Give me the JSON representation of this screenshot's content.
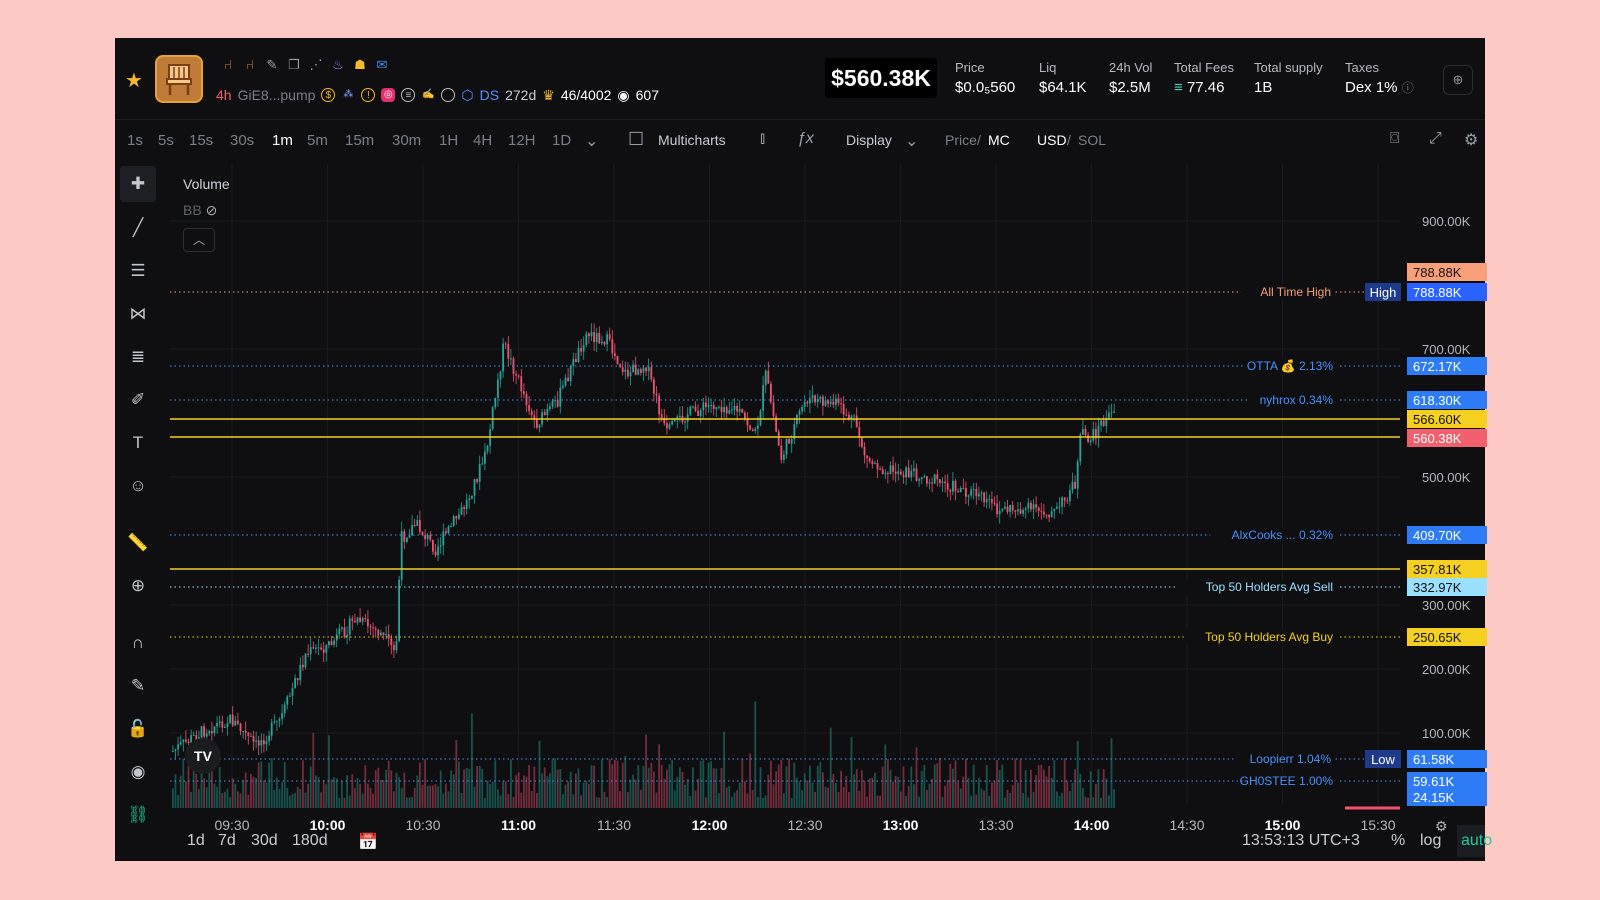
{
  "header": {
    "age": "4h",
    "ticker": "GiE8...pump",
    "ds_label": "DS",
    "ds_age": "272d",
    "holders": "46/4002",
    "watchers": "607",
    "market_cap": "$560.38K",
    "stats": [
      {
        "label": "Price",
        "value": "$0.0₅560"
      },
      {
        "label": "Liq",
        "value": "$64.1K"
      },
      {
        "label": "24h Vol",
        "value": "$2.5M"
      },
      {
        "label": "Total Fees",
        "value": "77.46"
      },
      {
        "label": "Total supply",
        "value": "1B"
      },
      {
        "label": "Taxes",
        "value": "Dex 1%"
      }
    ]
  },
  "toolbar": {
    "timeframes": [
      "1s",
      "5s",
      "15s",
      "30s",
      "1m",
      "5m",
      "15m",
      "30m",
      "1H",
      "4H",
      "12H",
      "1D"
    ],
    "active_timeframe": "1m",
    "multicharts": "Multicharts",
    "display": "Display",
    "price_label": "Price",
    "mc_label": "MC",
    "usd_label": "USD",
    "sol_label": "SOL"
  },
  "legend": {
    "volume": "Volume",
    "bb": "BB"
  },
  "chart_data": {
    "type": "candlestick",
    "y_unit": "market cap (USD)",
    "y_ticks": [
      "900.00K",
      "700.00K",
      "500.00K",
      "300.00K",
      "200.00K",
      "100.00K"
    ],
    "x_ticks": [
      {
        "label": "09:30",
        "bold": false
      },
      {
        "label": "10:00",
        "bold": true
      },
      {
        "label": "10:30",
        "bold": false
      },
      {
        "label": "11:00",
        "bold": true
      },
      {
        "label": "11:30",
        "bold": false
      },
      {
        "label": "12:00",
        "bold": true
      },
      {
        "label": "12:30",
        "bold": false
      },
      {
        "label": "13:00",
        "bold": true
      },
      {
        "label": "13:30",
        "bold": false
      },
      {
        "label": "14:00",
        "bold": true
      },
      {
        "label": "14:30",
        "bold": false
      },
      {
        "label": "15:00",
        "bold": true
      },
      {
        "label": "15:30",
        "bold": false
      }
    ],
    "current_value": "560.38K",
    "levels": [
      {
        "label": "All Time High",
        "tag": "788.88K",
        "extra_tag": "High",
        "color": "#f7a07a",
        "tag_bg": "#2962ff"
      },
      {
        "label": "",
        "tag": "788.88K",
        "color": "#f7a07a",
        "tag_bg": "#f7a07a"
      },
      {
        "label": "OTTA 💰 2.13%",
        "tag": "672.17K",
        "color": "#4a90ff",
        "tag_bg": "#2d7cf6"
      },
      {
        "label": "nyhrox 0.34%",
        "tag": "618.30K",
        "color": "#4a90ff",
        "tag_bg": "#2d7cf6"
      },
      {
        "label": "",
        "tag": "566.60K",
        "color": "#f5d020",
        "tag_bg": "#f5d020"
      },
      {
        "label": "",
        "tag": "560.38K",
        "color": "#f0616d",
        "tag_bg": "#f0616d"
      },
      {
        "label": "AlxCooks ... 0.32%",
        "tag": "409.70K",
        "color": "#4a90ff",
        "tag_bg": "#2d7cf6"
      },
      {
        "label": "",
        "tag": "357.81K",
        "color": "#f5d020",
        "tag_bg": "#f5d020"
      },
      {
        "label": "Top 50 Holders Avg Sell",
        "tag": "332.97K",
        "color": "#9ae0ff",
        "tag_bg": "#9ae0ff"
      },
      {
        "label": "Top 50 Holders Avg Buy",
        "tag": "250.65K",
        "color": "#f5d020",
        "tag_bg": "#f5d020"
      },
      {
        "label": "Loopierr 1.04%",
        "tag": "61.58K",
        "extra_tag": "Low",
        "color": "#4a90ff",
        "tag_bg": "#2d7cf6"
      },
      {
        "label": "GH0STEE 1.00%",
        "tag": "59.61K",
        "color": "#4a90ff",
        "tag_bg": "#2d7cf6"
      },
      {
        "label": "",
        "tag": "24.15K",
        "color": "#4a90ff",
        "tag_bg": "#2d7cf6"
      }
    ],
    "up_color": "#26a69a",
    "down_color": "#ef5370"
  },
  "footer": {
    "ranges": [
      "1d",
      "7d",
      "30d",
      "180d"
    ],
    "clock": "13:53:13 UTC+3",
    "percent": "%",
    "log": "log",
    "auto": "auto"
  }
}
